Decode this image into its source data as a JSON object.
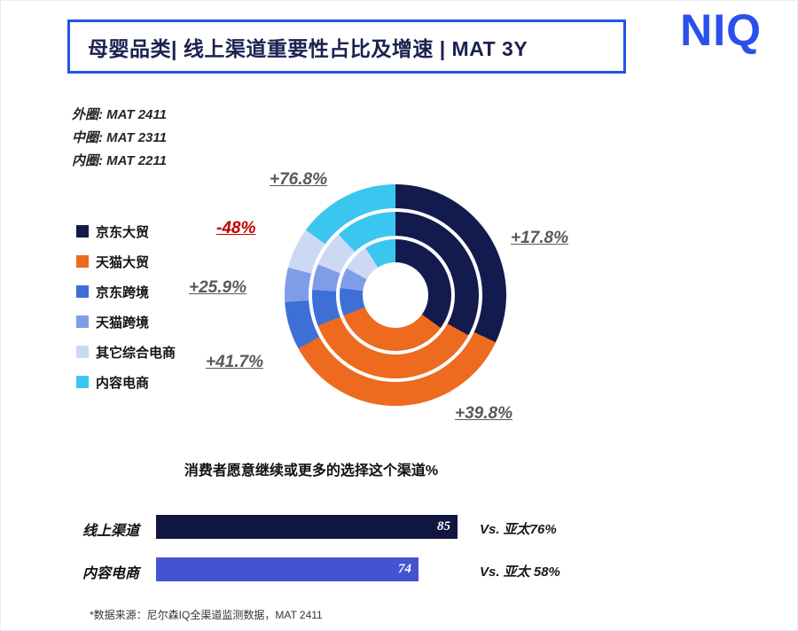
{
  "logo_text": "NIQ",
  "header": {
    "title": "母婴品类| 线上渠道重要性占比及增速 | MAT 3Y"
  },
  "ring_notes": [
    "外圈: MAT 2411",
    "中圈: MAT 2311",
    "内圈: MAT 2211"
  ],
  "legend": [
    {
      "label": "京东大贸",
      "color": "#131a4d"
    },
    {
      "label": "天猫大贸",
      "color": "#ed6a1f"
    },
    {
      "label": "京东跨境",
      "color": "#3d6fd6"
    },
    {
      "label": "天猫跨境",
      "color": "#7e9ce8"
    },
    {
      "label": "其它综合电商",
      "color": "#ccd9f4"
    },
    {
      "label": "内容电商",
      "color": "#3bc6f0"
    }
  ],
  "chart_data": [
    {
      "type": "pie",
      "subtype": "multi-ring-donut",
      "title": "线上渠道重要性占比及增速 MAT 3Y",
      "categories": [
        "京东大贸",
        "天猫大贸",
        "京东跨境",
        "天猫跨境",
        "其它综合电商",
        "内容电商"
      ],
      "colors": [
        "#131a4d",
        "#ed6a1f",
        "#3d6fd6",
        "#7e9ce8",
        "#ccd9f4",
        "#3bc6f0"
      ],
      "rings": [
        {
          "name": "外圈 MAT 2411",
          "values": [
            32,
            35,
            7,
            5,
            6,
            15
          ]
        },
        {
          "name": "中圈 MAT 2311",
          "values": [
            33,
            36,
            7,
            5,
            7,
            12
          ]
        },
        {
          "name": "内圈 MAT 2211",
          "values": [
            35,
            34,
            8,
            6,
            8,
            9
          ]
        }
      ],
      "growth_labels": [
        {
          "category": "京东大贸",
          "label": "+17.8%",
          "color": "#595959"
        },
        {
          "category": "天猫大贸",
          "label": "+39.8%",
          "color": "#595959"
        },
        {
          "category": "京东跨境",
          "label": "+41.7%",
          "color": "#595959"
        },
        {
          "category": "天猫跨境",
          "label": "+25.9%",
          "color": "#595959"
        },
        {
          "category": "其它综合电商",
          "label": "-48%",
          "color": "#c00000"
        },
        {
          "category": "内容电商",
          "label": "+76.8%",
          "color": "#595959"
        }
      ]
    },
    {
      "type": "bar",
      "orientation": "horizontal",
      "title": "消费者愿意继续或更多的选择这个渠道%",
      "categories": [
        "线上渠道",
        "内容电商"
      ],
      "values": [
        85,
        74
      ],
      "comparisons": [
        "Vs. 亚太76%",
        "Vs. 亚太 58%"
      ],
      "colors": [
        "#10163f",
        "#4453d2"
      ],
      "xlim": [
        0,
        100
      ]
    }
  ],
  "footer": "*数据来源：尼尔森IQ全渠道监测数据，MAT 2411"
}
